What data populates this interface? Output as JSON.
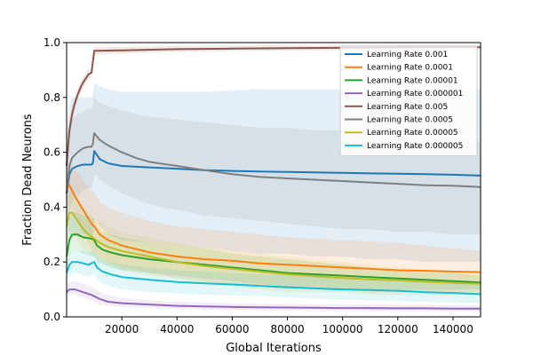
{
  "chart_data": {
    "type": "line",
    "title": "",
    "xlabel": "Global Iterations",
    "ylabel": "Fraction Dead Neurons",
    "xlim": [
      0,
      150000
    ],
    "ylim": [
      0.0,
      1.0
    ],
    "xticks": [
      20000,
      40000,
      60000,
      80000,
      100000,
      120000,
      140000
    ],
    "xtick_labels": [
      "20000",
      "40000",
      "60000",
      "80000",
      "100000",
      "120000",
      "140000"
    ],
    "yticks": [
      0.0,
      0.2,
      0.4,
      0.6,
      0.8,
      1.0
    ],
    "ytick_labels": [
      "0.0",
      "0.2",
      "0.4",
      "0.6",
      "0.8",
      "1.0"
    ],
    "grid": false,
    "legend_position": "top-right",
    "series": [
      {
        "name": "Learning Rate 0.001",
        "color": "#1f77b4",
        "x": [
          0,
          1000,
          2000,
          4000,
          6000,
          9000,
          9500,
          10000,
          12000,
          15000,
          20000,
          30000,
          40000,
          50000,
          60000,
          70000,
          80000,
          90000,
          100000,
          110000,
          120000,
          130000,
          140000,
          150000
        ],
        "y": [
          0.45,
          0.52,
          0.54,
          0.55,
          0.555,
          0.555,
          0.56,
          0.605,
          0.575,
          0.56,
          0.55,
          0.545,
          0.54,
          0.535,
          0.532,
          0.53,
          0.528,
          0.527,
          0.525,
          0.523,
          0.522,
          0.52,
          0.518,
          0.515
        ],
        "band_upper": [
          0.65,
          0.78,
          0.8,
          0.8,
          0.8,
          0.8,
          0.81,
          0.85,
          0.84,
          0.83,
          0.82,
          0.82,
          0.82,
          0.82,
          0.825,
          0.83,
          0.83,
          0.83,
          0.83,
          0.83,
          0.83,
          0.83,
          0.83,
          0.83
        ],
        "band_lower": [
          0.35,
          0.3,
          0.3,
          0.3,
          0.3,
          0.3,
          0.3,
          0.36,
          0.33,
          0.3,
          0.28,
          0.27,
          0.26,
          0.25,
          0.24,
          0.23,
          0.23,
          0.22,
          0.22,
          0.21,
          0.21,
          0.2,
          0.2,
          0.2
        ]
      },
      {
        "name": "Learning Rate 0.0001",
        "color": "#ff7f0e",
        "x": [
          0,
          1000,
          3000,
          6000,
          9000,
          10000,
          12000,
          15000,
          20000,
          30000,
          40000,
          50000,
          60000,
          70000,
          80000,
          90000,
          100000,
          110000,
          120000,
          130000,
          140000,
          150000
        ],
        "y": [
          0.47,
          0.48,
          0.44,
          0.39,
          0.34,
          0.33,
          0.3,
          0.28,
          0.26,
          0.235,
          0.22,
          0.21,
          0.205,
          0.195,
          0.19,
          0.185,
          0.18,
          0.175,
          0.17,
          0.168,
          0.165,
          0.163
        ],
        "band_upper": [
          0.55,
          0.56,
          0.54,
          0.5,
          0.46,
          0.45,
          0.42,
          0.4,
          0.38,
          0.35,
          0.33,
          0.32,
          0.31,
          0.3,
          0.29,
          0.285,
          0.28,
          0.275,
          0.27,
          0.26,
          0.25,
          0.24
        ],
        "band_lower": [
          0.4,
          0.41,
          0.36,
          0.3,
          0.25,
          0.24,
          0.22,
          0.2,
          0.18,
          0.16,
          0.14,
          0.13,
          0.12,
          0.11,
          0.1,
          0.1,
          0.1,
          0.09,
          0.09,
          0.09,
          0.09,
          0.09
        ]
      },
      {
        "name": "Learning Rate 0.00001",
        "color": "#2ca02c",
        "x": [
          0,
          1000,
          2000,
          4000,
          6000,
          9000,
          10000,
          11000,
          13000,
          16000,
          20000,
          30000,
          40000,
          50000,
          60000,
          70000,
          80000,
          90000,
          100000,
          110000,
          120000,
          130000,
          140000,
          150000
        ],
        "y": [
          0.22,
          0.28,
          0.3,
          0.3,
          0.29,
          0.285,
          0.28,
          0.26,
          0.245,
          0.235,
          0.225,
          0.21,
          0.2,
          0.19,
          0.18,
          0.17,
          0.16,
          0.155,
          0.15,
          0.145,
          0.14,
          0.135,
          0.13,
          0.125
        ],
        "band_upper": [
          0.3,
          0.36,
          0.38,
          0.38,
          0.37,
          0.36,
          0.36,
          0.33,
          0.31,
          0.3,
          0.29,
          0.27,
          0.26,
          0.25,
          0.23,
          0.22,
          0.21,
          0.2,
          0.19,
          0.18,
          0.17,
          0.16,
          0.16,
          0.15
        ],
        "band_lower": [
          0.16,
          0.22,
          0.24,
          0.24,
          0.23,
          0.22,
          0.22,
          0.2,
          0.19,
          0.18,
          0.17,
          0.16,
          0.15,
          0.14,
          0.13,
          0.12,
          0.11,
          0.11,
          0.1,
          0.1,
          0.1,
          0.1,
          0.1,
          0.1
        ]
      },
      {
        "name": "Learning Rate 0.000001",
        "color": "#9467bd",
        "x": [
          0,
          1000,
          3000,
          6000,
          9000,
          12000,
          15000,
          20000,
          30000,
          40000,
          50000,
          60000,
          70000,
          80000,
          90000,
          100000,
          110000,
          120000,
          130000,
          140000,
          150000
        ],
        "y": [
          0.09,
          0.1,
          0.1,
          0.09,
          0.08,
          0.065,
          0.055,
          0.05,
          0.045,
          0.04,
          0.038,
          0.036,
          0.035,
          0.034,
          0.033,
          0.032,
          0.032,
          0.031,
          0.031,
          0.03,
          0.03
        ],
        "band_upper": [
          0.12,
          0.13,
          0.13,
          0.12,
          0.11,
          0.09,
          0.08,
          0.07,
          0.06,
          0.055,
          0.052,
          0.05,
          0.048,
          0.047,
          0.046,
          0.045,
          0.045,
          0.044,
          0.044,
          0.043,
          0.043
        ],
        "band_lower": [
          0.07,
          0.08,
          0.08,
          0.07,
          0.06,
          0.045,
          0.04,
          0.035,
          0.032,
          0.028,
          0.026,
          0.025,
          0.024,
          0.023,
          0.022,
          0.022,
          0.021,
          0.021,
          0.021,
          0.02,
          0.02
        ]
      },
      {
        "name": "Learning Rate 0.005",
        "color": "#8c564b",
        "x": [
          0,
          500,
          1000,
          2000,
          3000,
          4000,
          5000,
          6000,
          7000,
          8000,
          9000,
          10000,
          20000,
          40000,
          60000,
          80000,
          100000,
          120000,
          140000,
          150000
        ],
        "y": [
          0.55,
          0.62,
          0.68,
          0.74,
          0.78,
          0.81,
          0.835,
          0.855,
          0.87,
          0.885,
          0.89,
          0.97,
          0.972,
          0.976,
          0.978,
          0.98,
          0.981,
          0.982,
          0.983,
          0.983
        ],
        "band_upper": [
          0.6,
          0.66,
          0.71,
          0.77,
          0.8,
          0.83,
          0.855,
          0.875,
          0.89,
          0.9,
          0.905,
          0.985,
          0.985,
          0.988,
          0.989,
          0.99,
          0.99,
          0.99,
          0.99,
          0.99
        ],
        "band_lower": [
          0.5,
          0.58,
          0.64,
          0.71,
          0.76,
          0.79,
          0.815,
          0.835,
          0.85,
          0.865,
          0.875,
          0.955,
          0.96,
          0.965,
          0.968,
          0.97,
          0.972,
          0.974,
          0.975,
          0.975
        ]
      },
      {
        "name": "Learning Rate 0.0005",
        "color": "#7f7f7f",
        "x": [
          0,
          1000,
          2000,
          4000,
          6000,
          8000,
          9000,
          9500,
          10000,
          12000,
          15000,
          20000,
          25000,
          30000,
          40000,
          50000,
          60000,
          70000,
          80000,
          90000,
          100000,
          110000,
          120000,
          130000,
          140000,
          150000
        ],
        "y": [
          0.45,
          0.55,
          0.58,
          0.6,
          0.615,
          0.62,
          0.62,
          0.63,
          0.67,
          0.645,
          0.625,
          0.6,
          0.58,
          0.565,
          0.55,
          0.535,
          0.52,
          0.51,
          0.505,
          0.5,
          0.495,
          0.49,
          0.485,
          0.48,
          0.478,
          0.473
        ],
        "band_upper": [
          0.58,
          0.7,
          0.72,
          0.74,
          0.75,
          0.76,
          0.76,
          0.77,
          0.8,
          0.78,
          0.77,
          0.75,
          0.74,
          0.73,
          0.72,
          0.71,
          0.7,
          0.69,
          0.69,
          0.68,
          0.68,
          0.67,
          0.66,
          0.66,
          0.65,
          0.64
        ],
        "band_lower": [
          0.3,
          0.38,
          0.42,
          0.44,
          0.46,
          0.47,
          0.47,
          0.48,
          0.52,
          0.5,
          0.48,
          0.45,
          0.43,
          0.41,
          0.39,
          0.37,
          0.36,
          0.35,
          0.34,
          0.33,
          0.32,
          0.32,
          0.31,
          0.31,
          0.3,
          0.3
        ]
      },
      {
        "name": "Learning Rate 0.00005",
        "color": "#bcbd22",
        "x": [
          0,
          1000,
          2000,
          4000,
          6000,
          8000,
          10000,
          12000,
          15000,
          20000,
          30000,
          40000,
          50000,
          60000,
          70000,
          80000,
          90000,
          100000,
          110000,
          120000,
          130000,
          140000,
          150000
        ],
        "y": [
          0.33,
          0.38,
          0.38,
          0.35,
          0.32,
          0.3,
          0.285,
          0.27,
          0.255,
          0.24,
          0.22,
          0.2,
          0.185,
          0.175,
          0.165,
          0.155,
          0.148,
          0.142,
          0.137,
          0.133,
          0.128,
          0.124,
          0.12
        ],
        "band_upper": [
          0.4,
          0.45,
          0.46,
          0.43,
          0.4,
          0.38,
          0.36,
          0.35,
          0.33,
          0.31,
          0.29,
          0.27,
          0.25,
          0.24,
          0.23,
          0.22,
          0.21,
          0.2,
          0.19,
          0.18,
          0.17,
          0.17,
          0.16
        ],
        "band_lower": [
          0.26,
          0.31,
          0.31,
          0.28,
          0.25,
          0.23,
          0.22,
          0.2,
          0.19,
          0.17,
          0.15,
          0.14,
          0.12,
          0.11,
          0.1,
          0.09,
          0.09,
          0.09,
          0.08,
          0.08,
          0.08,
          0.08,
          0.08
        ]
      },
      {
        "name": "Learning Rate 0.000005",
        "color": "#17becf",
        "x": [
          0,
          1000,
          2000,
          4000,
          6000,
          8000,
          9000,
          10000,
          11000,
          13000,
          16000,
          20000,
          30000,
          40000,
          50000,
          60000,
          70000,
          80000,
          90000,
          100000,
          110000,
          120000,
          130000,
          140000,
          150000
        ],
        "y": [
          0.16,
          0.19,
          0.2,
          0.2,
          0.195,
          0.19,
          0.195,
          0.2,
          0.18,
          0.165,
          0.155,
          0.145,
          0.135,
          0.127,
          0.122,
          0.118,
          0.113,
          0.108,
          0.104,
          0.1,
          0.098,
          0.095,
          0.09,
          0.087,
          0.083
        ],
        "band_upper": [
          0.2,
          0.23,
          0.24,
          0.24,
          0.24,
          0.235,
          0.24,
          0.245,
          0.225,
          0.21,
          0.2,
          0.19,
          0.18,
          0.17,
          0.165,
          0.16,
          0.155,
          0.15,
          0.145,
          0.14,
          0.135,
          0.13,
          0.125,
          0.12,
          0.115
        ],
        "band_lower": [
          0.12,
          0.15,
          0.16,
          0.16,
          0.15,
          0.145,
          0.15,
          0.155,
          0.135,
          0.12,
          0.11,
          0.1,
          0.09,
          0.085,
          0.08,
          0.078,
          0.075,
          0.07,
          0.066,
          0.062,
          0.06,
          0.058,
          0.055,
          0.052,
          0.05
        ]
      }
    ]
  }
}
